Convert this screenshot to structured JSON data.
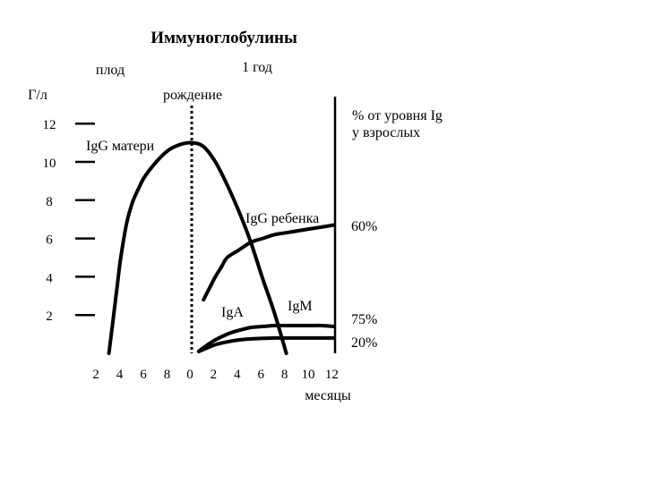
{
  "chart_data": {
    "type": "line",
    "title": "Иммуноглобулины",
    "region_labels": {
      "fetus": "плод",
      "year": "1 год"
    },
    "ylabel": "Г/л",
    "xlabel": "месяцы",
    "birth_label": "рождение",
    "right_header": [
      "% от уровня Ig",
      "у взрослых"
    ],
    "ylim": [
      0,
      12
    ],
    "y_ticks": [
      "12",
      "10",
      "8",
      "6",
      "4",
      "2"
    ],
    "x_ticks": [
      "2",
      "4",
      "6",
      "8",
      "0",
      "2",
      "4",
      "6",
      "8",
      "10",
      "12"
    ],
    "x_note": "x = months relative to birth (negative = before birth)",
    "series": [
      {
        "name": "IgG матери",
        "x": [
          -7,
          -6.7,
          -6.3,
          -6,
          -5.5,
          -5,
          -4.5,
          -4,
          -3,
          -2,
          -1,
          0,
          1,
          2,
          3,
          4,
          5,
          6,
          7,
          8
        ],
        "y": [
          0,
          1.5,
          3.5,
          5,
          6.8,
          7.9,
          8.6,
          9.2,
          10,
          10.6,
          10.9,
          11,
          10.8,
          10,
          8.8,
          7.4,
          5.8,
          3.9,
          2.1,
          0
        ]
      },
      {
        "name": "IgG ребенка",
        "x": [
          1,
          1.5,
          2,
          2.5,
          3,
          4,
          5,
          6,
          7,
          8,
          9,
          10,
          11,
          12
        ],
        "y": [
          2.8,
          3.4,
          4,
          4.5,
          5,
          5.4,
          5.8,
          6,
          6.2,
          6.3,
          6.4,
          6.5,
          6.6,
          6.7
        ],
        "percent_label": "60%"
      },
      {
        "name": "IgM",
        "x": [
          0.6,
          1,
          2,
          3,
          4,
          5,
          6,
          7,
          8,
          9,
          10,
          11,
          12
        ],
        "y": [
          0.1,
          0.3,
          0.7,
          1,
          1.2,
          1.35,
          1.4,
          1.45,
          1.45,
          1.45,
          1.45,
          1.45,
          1.4
        ],
        "percent_label": "75%"
      },
      {
        "name": "IgA",
        "x": [
          0.6,
          1,
          2,
          3,
          4,
          5,
          6,
          7,
          8,
          9,
          10,
          11,
          12
        ],
        "y": [
          0.1,
          0.2,
          0.45,
          0.6,
          0.7,
          0.75,
          0.78,
          0.8,
          0.8,
          0.8,
          0.8,
          0.8,
          0.8
        ],
        "percent_label": "20%"
      }
    ]
  }
}
